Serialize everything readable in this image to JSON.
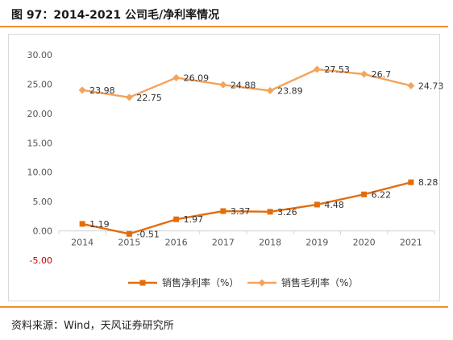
{
  "header": {
    "title": "图 97：2014-2021 公司毛/净利率情况"
  },
  "footer": {
    "source": "资料来源：Wind，天风证券研究所"
  },
  "colors": {
    "accent": "#f28e2b",
    "net": "#e46c0a",
    "gross": "#f4a35a",
    "axis_text_neg": "#c00000"
  },
  "chart_data": {
    "type": "line",
    "title": "",
    "xlabel": "",
    "ylabel": "",
    "categories": [
      "2014",
      "2015",
      "2016",
      "2017",
      "2018",
      "2019",
      "2020",
      "2021"
    ],
    "ylim": [
      -5,
      30
    ],
    "yticks": [
      "30.00",
      "25.00",
      "20.00",
      "15.00",
      "10.00",
      "5.00",
      "0.00",
      "-5.00"
    ],
    "legend_position": "bottom",
    "grid": false,
    "series": [
      {
        "name": "销售净利率（%）",
        "values": [
          1.19,
          -0.51,
          1.97,
          3.37,
          3.26,
          4.48,
          6.22,
          8.28
        ],
        "labels": [
          "1.19",
          "-0.51",
          "1.97",
          "3.37",
          "3.26",
          "4.48",
          "6.22",
          "8.28"
        ],
        "marker": "square"
      },
      {
        "name": "销售毛利率（%）",
        "values": [
          23.98,
          22.75,
          26.09,
          24.88,
          23.89,
          27.53,
          26.7,
          24.73
        ],
        "labels": [
          "23.98",
          "22.75",
          "26.09",
          "24.88",
          "23.89",
          "27.53",
          "26.7",
          "24.73"
        ],
        "marker": "diamond"
      }
    ]
  }
}
